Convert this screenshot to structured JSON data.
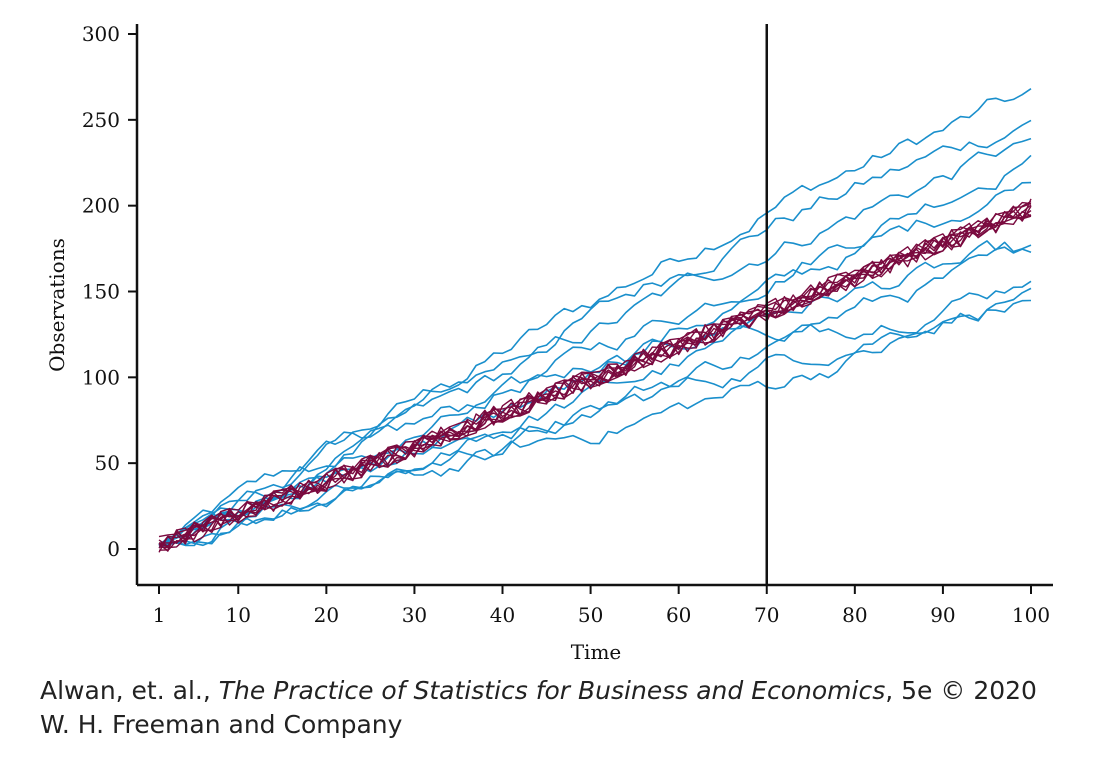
{
  "chart_data": {
    "type": "line",
    "xlabel": "Time",
    "ylabel": "Observations",
    "xlim": [
      1,
      100
    ],
    "ylim": [
      -20,
      300
    ],
    "x_ticks": [
      1,
      10,
      20,
      30,
      40,
      50,
      60,
      70,
      80,
      90,
      100
    ],
    "y_ticks": [
      0,
      50,
      100,
      150,
      200,
      250,
      300
    ],
    "vertical_line_x": 70,
    "colors": {
      "blue_series": "#1a8fcc",
      "red_series": "#7a0a3f",
      "axis": "#111111"
    },
    "blue_series_endpoints": [
      {
        "y70": 200,
        "y100": 265
      },
      {
        "y70": 190,
        "y100": 250
      },
      {
        "y70": 175,
        "y100": 238
      },
      {
        "y70": 160,
        "y100": 230
      },
      {
        "y70": 150,
        "y100": 216
      },
      {
        "y70": 138,
        "y100": 174
      },
      {
        "y70": 125,
        "y100": 170
      },
      {
        "y70": 118,
        "y100": 158
      },
      {
        "y70": 108,
        "y100": 150
      },
      {
        "y70": 95,
        "y100": 145
      }
    ],
    "red_series_count": 10,
    "red_series_trend": {
      "y1": 2,
      "y100": 198
    }
  },
  "caption": {
    "authors": "Alwan, et. al., ",
    "title": "The Practice of Statistics for Business and Economics",
    "edition": ", 5e © 2020",
    "publisher": "W. H. Freeman and Company"
  }
}
